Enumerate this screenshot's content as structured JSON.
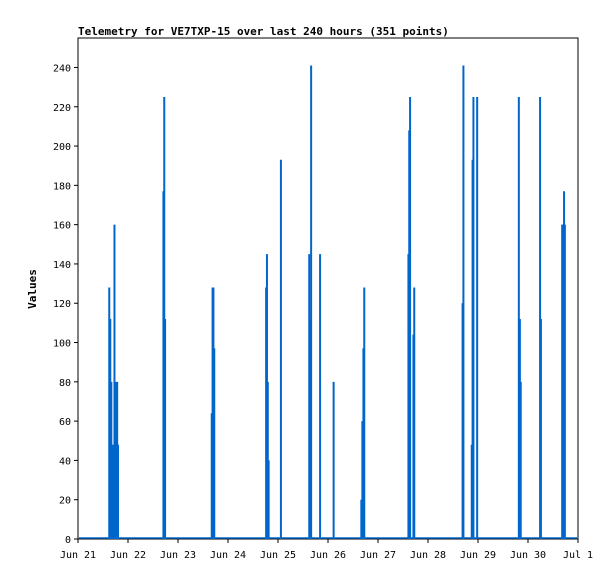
{
  "chart_data": {
    "type": "bar",
    "title": "Telemetry for VE7TXP-15 over last 240 hours (351 points)",
    "xlabel": "",
    "ylabel": "Values",
    "ylim": [
      0,
      255
    ],
    "xlim": [
      0,
      240
    ],
    "yticks": [
      0,
      20,
      40,
      60,
      80,
      100,
      120,
      140,
      160,
      180,
      200,
      220,
      240
    ],
    "xticks": [
      {
        "x": 0,
        "label": "Jun 21"
      },
      {
        "x": 24,
        "label": "Jun 22"
      },
      {
        "x": 48,
        "label": "Jun 23"
      },
      {
        "x": 72,
        "label": "Jun 24"
      },
      {
        "x": 96,
        "label": "Jun 25"
      },
      {
        "x": 120,
        "label": "Jun 26"
      },
      {
        "x": 144,
        "label": "Jun 27"
      },
      {
        "x": 168,
        "label": "Jun 28"
      },
      {
        "x": 192,
        "label": "Jun 29"
      },
      {
        "x": 216,
        "label": "Jun 30"
      },
      {
        "x": 240,
        "label": "Jul 1"
      }
    ],
    "grid": false,
    "bar_color": "#0066cc",
    "series": [
      {
        "x": [
          15.0,
          15.5,
          16.0,
          16.4,
          17.0,
          17.5,
          18.0,
          18.4,
          18.8,
          19.2,
          41.0,
          41.4,
          41.8,
          64.2,
          64.6,
          65.0,
          65.4,
          90.3,
          90.7,
          91.1,
          91.5,
          97.4,
          111.0,
          111.4,
          111.9,
          116.2,
          122.7,
          136.0,
          136.5,
          137.0,
          137.4,
          158.6,
          159.0,
          159.4,
          161.0,
          161.4,
          184.6,
          185.0,
          189.0,
          189.4,
          189.8,
          191.6,
          211.6,
          212.1,
          212.5,
          221.8,
          222.2,
          232.4,
          232.9,
          233.3,
          233.7
        ],
        "y": [
          128,
          112,
          80,
          48,
          48,
          160,
          80,
          48,
          80,
          48,
          177,
          225,
          112,
          64,
          128,
          128,
          97,
          128,
          145,
          80,
          40,
          193,
          145,
          112,
          241,
          145,
          80,
          20,
          60,
          97,
          128,
          145,
          208,
          225,
          104,
          128,
          120,
          241,
          48,
          193,
          225,
          225,
          225,
          112,
          80,
          225,
          112,
          160,
          160,
          177,
          160
        ]
      }
    ]
  }
}
